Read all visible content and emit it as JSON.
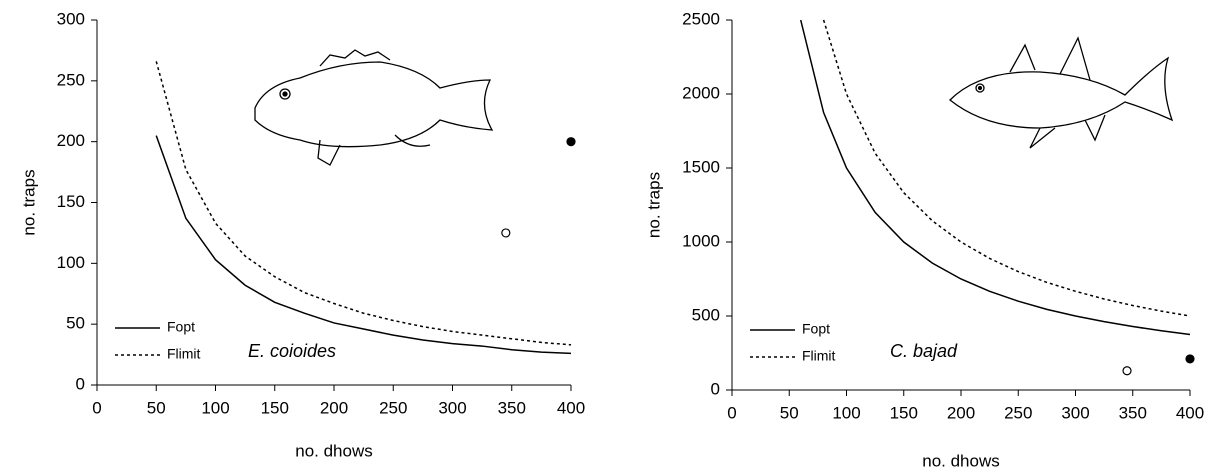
{
  "chart_data": [
    {
      "type": "line",
      "x_label": "no. dhows",
      "y_label": "no. traps",
      "annotation": "E. coioides",
      "x": [
        50,
        75,
        100,
        125,
        150,
        175,
        200,
        225,
        250,
        275,
        300,
        325,
        350,
        375,
        400
      ],
      "series": [
        {
          "name": "Fopt",
          "color": "#000000",
          "dash": "solid",
          "values": [
            205,
            137,
            103,
            82,
            68,
            59,
            51,
            46,
            41,
            37,
            34,
            32,
            29,
            27,
            26
          ]
        },
        {
          "name": "Flimit",
          "color": "#000000",
          "dash": "dotted",
          "values": [
            266,
            177,
            133,
            106,
            89,
            76,
            67,
            59,
            53,
            48,
            44,
            41,
            38,
            35,
            33
          ]
        }
      ],
      "points": [
        {
          "x": 400,
          "y": 200,
          "filled": true
        },
        {
          "x": 345,
          "y": 125,
          "filled": false
        }
      ],
      "xlim": [
        0,
        400
      ],
      "ylim": [
        0,
        300
      ],
      "xticks": [
        0,
        50,
        100,
        150,
        200,
        250,
        300,
        350,
        400
      ],
      "yticks": [
        0,
        50,
        100,
        150,
        200,
        250,
        300
      ],
      "legend": "lower left"
    },
    {
      "type": "line",
      "x_label": "no. dhows",
      "y_label": "no. traps",
      "annotation": "C. bajad",
      "x": [
        60,
        80,
        100,
        125,
        150,
        175,
        200,
        225,
        250,
        275,
        300,
        325,
        350,
        375,
        400
      ],
      "series": [
        {
          "name": "Fopt",
          "color": "#000000",
          "dash": "solid",
          "values": [
            2500,
            1875,
            1500,
            1200,
            1000,
            857,
            750,
            667,
            600,
            545,
            500,
            462,
            429,
            400,
            375
          ]
        },
        {
          "name": "Flimit",
          "color": "#000000",
          "dash": "dotted",
          "values": [
            null,
            2500,
            2000,
            1600,
            1333,
            1143,
            1000,
            889,
            800,
            727,
            667,
            615,
            571,
            533,
            500
          ]
        }
      ],
      "points": [
        {
          "x": 400,
          "y": 210,
          "filled": true
        },
        {
          "x": 345,
          "y": 130,
          "filled": false
        }
      ],
      "xlim": [
        0,
        400
      ],
      "ylim": [
        0,
        2500
      ],
      "xticks": [
        0,
        50,
        100,
        150,
        200,
        250,
        300,
        350,
        400
      ],
      "yticks": [
        0,
        500,
        1000,
        1500,
        2000,
        2500
      ],
      "legend": "lower left"
    }
  ]
}
